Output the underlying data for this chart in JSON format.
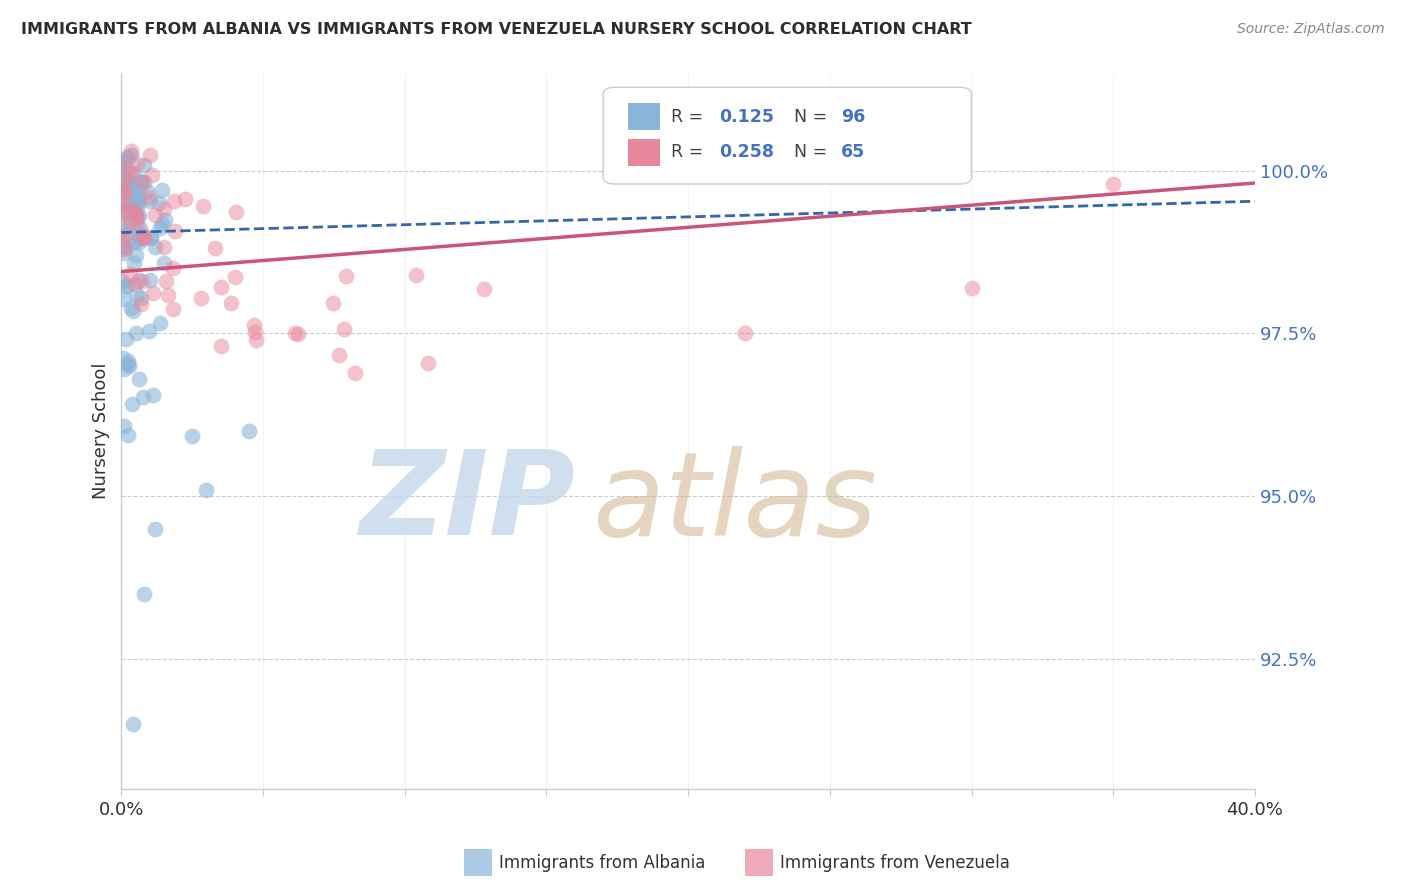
{
  "title": "IMMIGRANTS FROM ALBANIA VS IMMIGRANTS FROM VENEZUELA NURSERY SCHOOL CORRELATION CHART",
  "source": "Source: ZipAtlas.com",
  "ylabel": "Nursery School",
  "yticks": [
    92.5,
    95.0,
    97.5,
    100.0
  ],
  "ytick_labels": [
    "92.5%",
    "95.0%",
    "97.5%",
    "100.0%"
  ],
  "xlim": [
    0.0,
    40.0
  ],
  "ylim": [
    90.5,
    101.5
  ],
  "albania_color": "#8ab4d9",
  "venezuela_color": "#e8879c",
  "albania_line_color": "#3366aa",
  "venezuela_line_color": "#cc5577",
  "albania_R": 0.125,
  "albania_N": 96,
  "venezuela_R": 0.258,
  "venezuela_N": 65,
  "legend_label_albania": "Immigrants from Albania",
  "legend_label_venezuela": "Immigrants from Venezuela",
  "watermark_zip_color": "#c5d8ea",
  "watermark_atlas_color": "#d4b896",
  "albania_intercept": 99.05,
  "albania_slope": 0.012,
  "venezuela_intercept": 98.45,
  "venezuela_slope": 0.034
}
